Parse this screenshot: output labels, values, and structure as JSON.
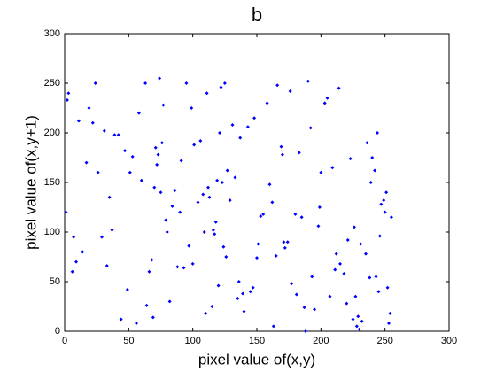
{
  "chart_data": {
    "type": "scatter",
    "title": "b",
    "x_label": "pixel value of(x,y)",
    "y_label": "pixel value of(x,y+1)",
    "color": "#0000ff",
    "xlim": [
      0,
      300
    ],
    "ylim": [
      0,
      300
    ],
    "xticks": [
      0,
      50,
      100,
      150,
      200,
      250,
      300
    ],
    "yticks": [
      0,
      50,
      100,
      150,
      200,
      250,
      300
    ],
    "x": [
      3,
      17,
      29,
      44,
      58,
      66,
      71,
      75,
      82,
      95,
      104,
      112,
      118,
      121,
      126,
      133,
      140,
      151,
      158,
      163,
      170,
      177,
      185,
      192,
      200,
      207,
      214,
      221,
      229,
      236,
      243,
      250,
      253,
      9,
      22,
      35,
      49,
      63,
      72,
      80,
      88,
      99,
      108,
      115,
      119,
      124,
      137,
      145,
      155,
      166,
      174,
      183,
      195,
      205,
      218,
      226,
      232,
      240,
      247,
      252,
      2,
      14,
      26,
      39,
      53,
      68,
      74,
      79,
      86,
      93,
      101,
      110,
      117,
      122,
      129,
      136,
      148,
      160,
      172,
      181,
      190,
      198,
      209,
      220,
      228,
      235,
      244,
      251,
      7,
      19,
      33,
      47,
      60,
      69,
      77,
      84,
      97,
      106,
      113,
      120,
      127,
      135,
      143,
      153,
      165,
      176,
      188,
      199,
      211,
      223,
      230,
      238,
      246,
      254,
      1,
      11,
      24,
      37,
      51,
      64,
      70,
      76,
      91,
      100,
      111,
      116,
      123,
      131,
      139,
      150,
      162,
      171,
      180,
      193,
      203,
      215,
      225,
      231,
      239,
      245,
      249,
      6,
      31,
      56,
      73,
      90,
      109,
      125,
      147,
      169,
      187,
      212,
      227,
      242,
      255,
      42
    ],
    "values": [
      240,
      170,
      95,
      12,
      220,
      60,
      185,
      140,
      30,
      250,
      130,
      145,
      110,
      200,
      75,
      155,
      20,
      88,
      230,
      5,
      178,
      48,
      115,
      205,
      160,
      35,
      245,
      92,
      15,
      190,
      55,
      120,
      8,
      70,
      210,
      135,
      42,
      250,
      168,
      100,
      65,
      225,
      138,
      25,
      152,
      85,
      195,
      40,
      118,
      248,
      90,
      180,
      22,
      235,
      58,
      105,
      10,
      175,
      128,
      44,
      233,
      80,
      160,
      198,
      176,
      72,
      255,
      112,
      142,
      64,
      188,
      18,
      98,
      246,
      132,
      50,
      215,
      148,
      84,
      37,
      252,
      106,
      165,
      28,
      5,
      78,
      200,
      140,
      95,
      225,
      66,
      182,
      152,
      14,
      228,
      126,
      86,
      192,
      135,
      46,
      162,
      33,
      206,
      116,
      76,
      242,
      0,
      125,
      62,
      174,
      2,
      54,
      96,
      18,
      120,
      212,
      250,
      102,
      160,
      26,
      145,
      190,
      172,
      68,
      240,
      102,
      150,
      208,
      38,
      74,
      130,
      90,
      118,
      55,
      230,
      68,
      12,
      88,
      150,
      40,
      132,
      60,
      202,
      8,
      178,
      120,
      100,
      250,
      44,
      186,
      24,
      78,
      35,
      162,
      115,
      198
    ]
  }
}
